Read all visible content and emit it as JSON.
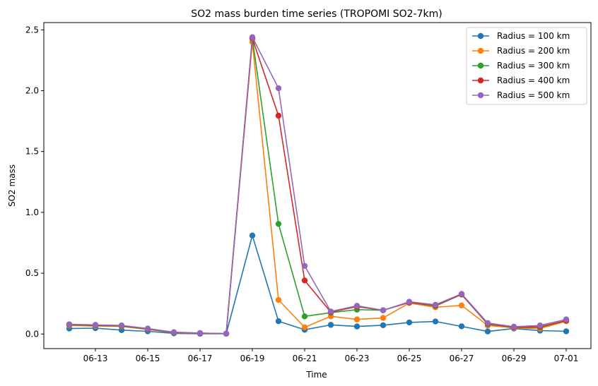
{
  "chart_data": {
    "type": "line",
    "title": "SO2 mass burden time series (TROPOMI SO2-7km)",
    "xlabel": "Time",
    "ylabel": "SO2 mass",
    "x_dates": [
      "06-12",
      "06-13",
      "06-14",
      "06-15",
      "06-16",
      "06-17",
      "06-18",
      "06-19",
      "06-20",
      "06-21",
      "06-22",
      "06-23",
      "06-24",
      "06-25",
      "06-26",
      "06-27",
      "06-28",
      "06-29",
      "06-30",
      "07-01"
    ],
    "x_tick_labels": [
      "06-13",
      "06-15",
      "06-17",
      "06-19",
      "06-21",
      "06-23",
      "06-25",
      "06-27",
      "06-29",
      "07-01"
    ],
    "ylim": [
      -0.12,
      2.56
    ],
    "y_ticks": [
      0.0,
      0.5,
      1.0,
      1.5,
      2.0,
      2.5
    ],
    "y_tick_labels": [
      "0.0",
      "0.5",
      "1.0",
      "1.5",
      "2.0",
      "2.5"
    ],
    "grid": false,
    "legend_position": "top-right",
    "series": [
      {
        "name": "Radius = 100 km",
        "color": "#1f77b4",
        "values": [
          0.045,
          0.048,
          0.032,
          0.022,
          0.005,
          0.002,
          0.002,
          0.81,
          0.105,
          0.035,
          0.075,
          0.062,
          0.072,
          0.095,
          0.103,
          0.063,
          0.021,
          0.045,
          0.028,
          0.022
        ]
      },
      {
        "name": "Radius = 200 km",
        "color": "#ff7f0e",
        "values": [
          0.07,
          0.065,
          0.062,
          0.038,
          0.01,
          0.005,
          0.003,
          2.4,
          0.28,
          0.055,
          0.145,
          0.12,
          0.132,
          0.255,
          0.22,
          0.235,
          0.07,
          0.05,
          0.045,
          0.105
        ]
      },
      {
        "name": "Radius = 300 km",
        "color": "#2ca02c",
        "values": [
          0.075,
          0.07,
          0.065,
          0.04,
          0.012,
          0.006,
          0.003,
          2.43,
          0.905,
          0.145,
          0.175,
          0.2,
          0.195,
          0.26,
          0.23,
          0.325,
          0.08,
          0.055,
          0.055,
          0.11
        ]
      },
      {
        "name": "Radius = 400 km",
        "color": "#d62728",
        "values": [
          0.078,
          0.072,
          0.068,
          0.042,
          0.013,
          0.007,
          0.003,
          2.43,
          1.795,
          0.44,
          0.18,
          0.225,
          0.195,
          0.26,
          0.235,
          0.325,
          0.085,
          0.055,
          0.06,
          0.11
        ]
      },
      {
        "name": "Radius = 500 km",
        "color": "#9467bd",
        "values": [
          0.08,
          0.075,
          0.07,
          0.045,
          0.015,
          0.008,
          0.003,
          2.44,
          2.02,
          0.56,
          0.185,
          0.232,
          0.195,
          0.265,
          0.24,
          0.33,
          0.09,
          0.06,
          0.07,
          0.12
        ]
      }
    ]
  }
}
